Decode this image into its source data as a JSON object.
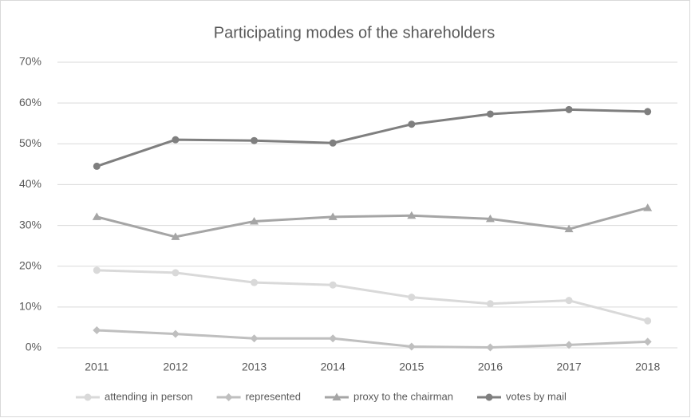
{
  "chart_data": {
    "type": "line",
    "title": "Participating modes of the shareholders",
    "categories": [
      "2011",
      "2012",
      "2013",
      "2014",
      "2015",
      "2016",
      "2017",
      "2018"
    ],
    "series": [
      {
        "name": "attending in person",
        "color": "#d9d9d9",
        "marker": "circle",
        "values": [
          19.0,
          18.4,
          16.0,
          15.4,
          12.4,
          10.8,
          11.6,
          6.6
        ]
      },
      {
        "name": "represented",
        "color": "#bfbfbf",
        "marker": "diamond",
        "values": [
          4.3,
          3.4,
          2.3,
          2.3,
          0.3,
          0.1,
          0.7,
          1.5
        ]
      },
      {
        "name": "proxy to the chairman",
        "color": "#a5a5a5",
        "marker": "triangle",
        "values": [
          32.1,
          27.2,
          31.0,
          32.1,
          32.4,
          31.6,
          29.1,
          34.3
        ]
      },
      {
        "name": "votes by mail",
        "color": "#7f7f7f",
        "marker": "circle",
        "values": [
          44.5,
          51.0,
          50.8,
          50.2,
          54.8,
          57.3,
          58.4,
          57.9
        ]
      }
    ],
    "ylim": [
      0,
      70
    ],
    "yticks": [
      {
        "value": 0,
        "label": "0%"
      },
      {
        "value": 10,
        "label": "10%"
      },
      {
        "value": 20,
        "label": "20%"
      },
      {
        "value": 30,
        "label": "30%"
      },
      {
        "value": 40,
        "label": "40%"
      },
      {
        "value": 50,
        "label": "50%"
      },
      {
        "value": 60,
        "label": "60%"
      },
      {
        "value": 70,
        "label": "70%"
      }
    ],
    "grid": true,
    "legend": "bottom"
  }
}
